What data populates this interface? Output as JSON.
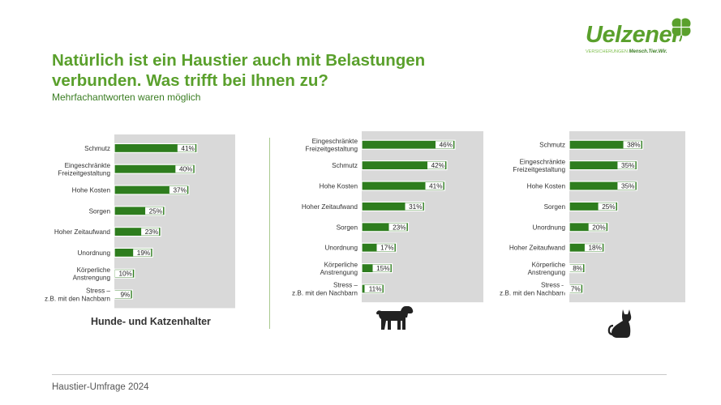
{
  "header": {
    "title": "Natürlich ist ein Haustier auch mit Belastungen verbunden. Was trifft bei Ihnen zu?",
    "subtitle": "Mehrfachantworten waren möglich"
  },
  "logo": {
    "wordmark": "Uelzener",
    "tagline_prefix": "VERSICHERUNGEN",
    "tagline": "Mensch.Tier.Wir."
  },
  "footer": {
    "text": "Haustier-Umfrage 2024"
  },
  "colors": {
    "bar": "#2e7d1e",
    "panel_bg": "#d9d9d9",
    "accent": "#5aa02c",
    "icon": "#222222"
  },
  "icons": {
    "dog": "dog-icon",
    "cat": "cat-icon",
    "logo": "clover-icon"
  },
  "chart_data": [
    {
      "type": "bar",
      "orientation": "horizontal",
      "title": "Hunde- und Katzenhalter",
      "unit": "%",
      "xlim": [
        0,
        60
      ],
      "categories": [
        "Schmutz",
        "Eingeschränkte\nFreizeitgestaltung",
        "Hohe Kosten",
        "Sorgen",
        "Hoher Zeitaufwand",
        "Unordnung",
        "Körperliche\nAnstrengung",
        "Stress –\nz.B. mit den Nachbarn"
      ],
      "values": [
        41,
        40,
        37,
        25,
        23,
        19,
        10,
        9
      ]
    },
    {
      "type": "bar",
      "orientation": "horizontal",
      "title": "",
      "unit": "%",
      "xlim": [
        0,
        60
      ],
      "categories": [
        "Eingeschränkte\nFreizeitgestaltung",
        "Schmutz",
        "Hohe Kosten",
        "Hoher Zeitaufwand",
        "Sorgen",
        "Unordnung",
        "Körperliche\nAnstrengung",
        "Stress –\nz.B. mit den Nachbarn"
      ],
      "values": [
        46,
        42,
        41,
        31,
        23,
        17,
        15,
        11
      ]
    },
    {
      "type": "bar",
      "orientation": "horizontal",
      "title": "",
      "unit": "%",
      "xlim": [
        0,
        60
      ],
      "categories": [
        "Schmutz",
        "Eingeschränkte\nFreizeitgestaltung",
        "Hohe Kosten",
        "Sorgen",
        "Unordnung",
        "Hoher Zeitaufwand",
        "Körperliche\nAnstrengung",
        "Stress –\nz.B. mit den Nachbarn"
      ],
      "values": [
        38,
        35,
        35,
        25,
        20,
        18,
        8,
        7
      ]
    }
  ]
}
